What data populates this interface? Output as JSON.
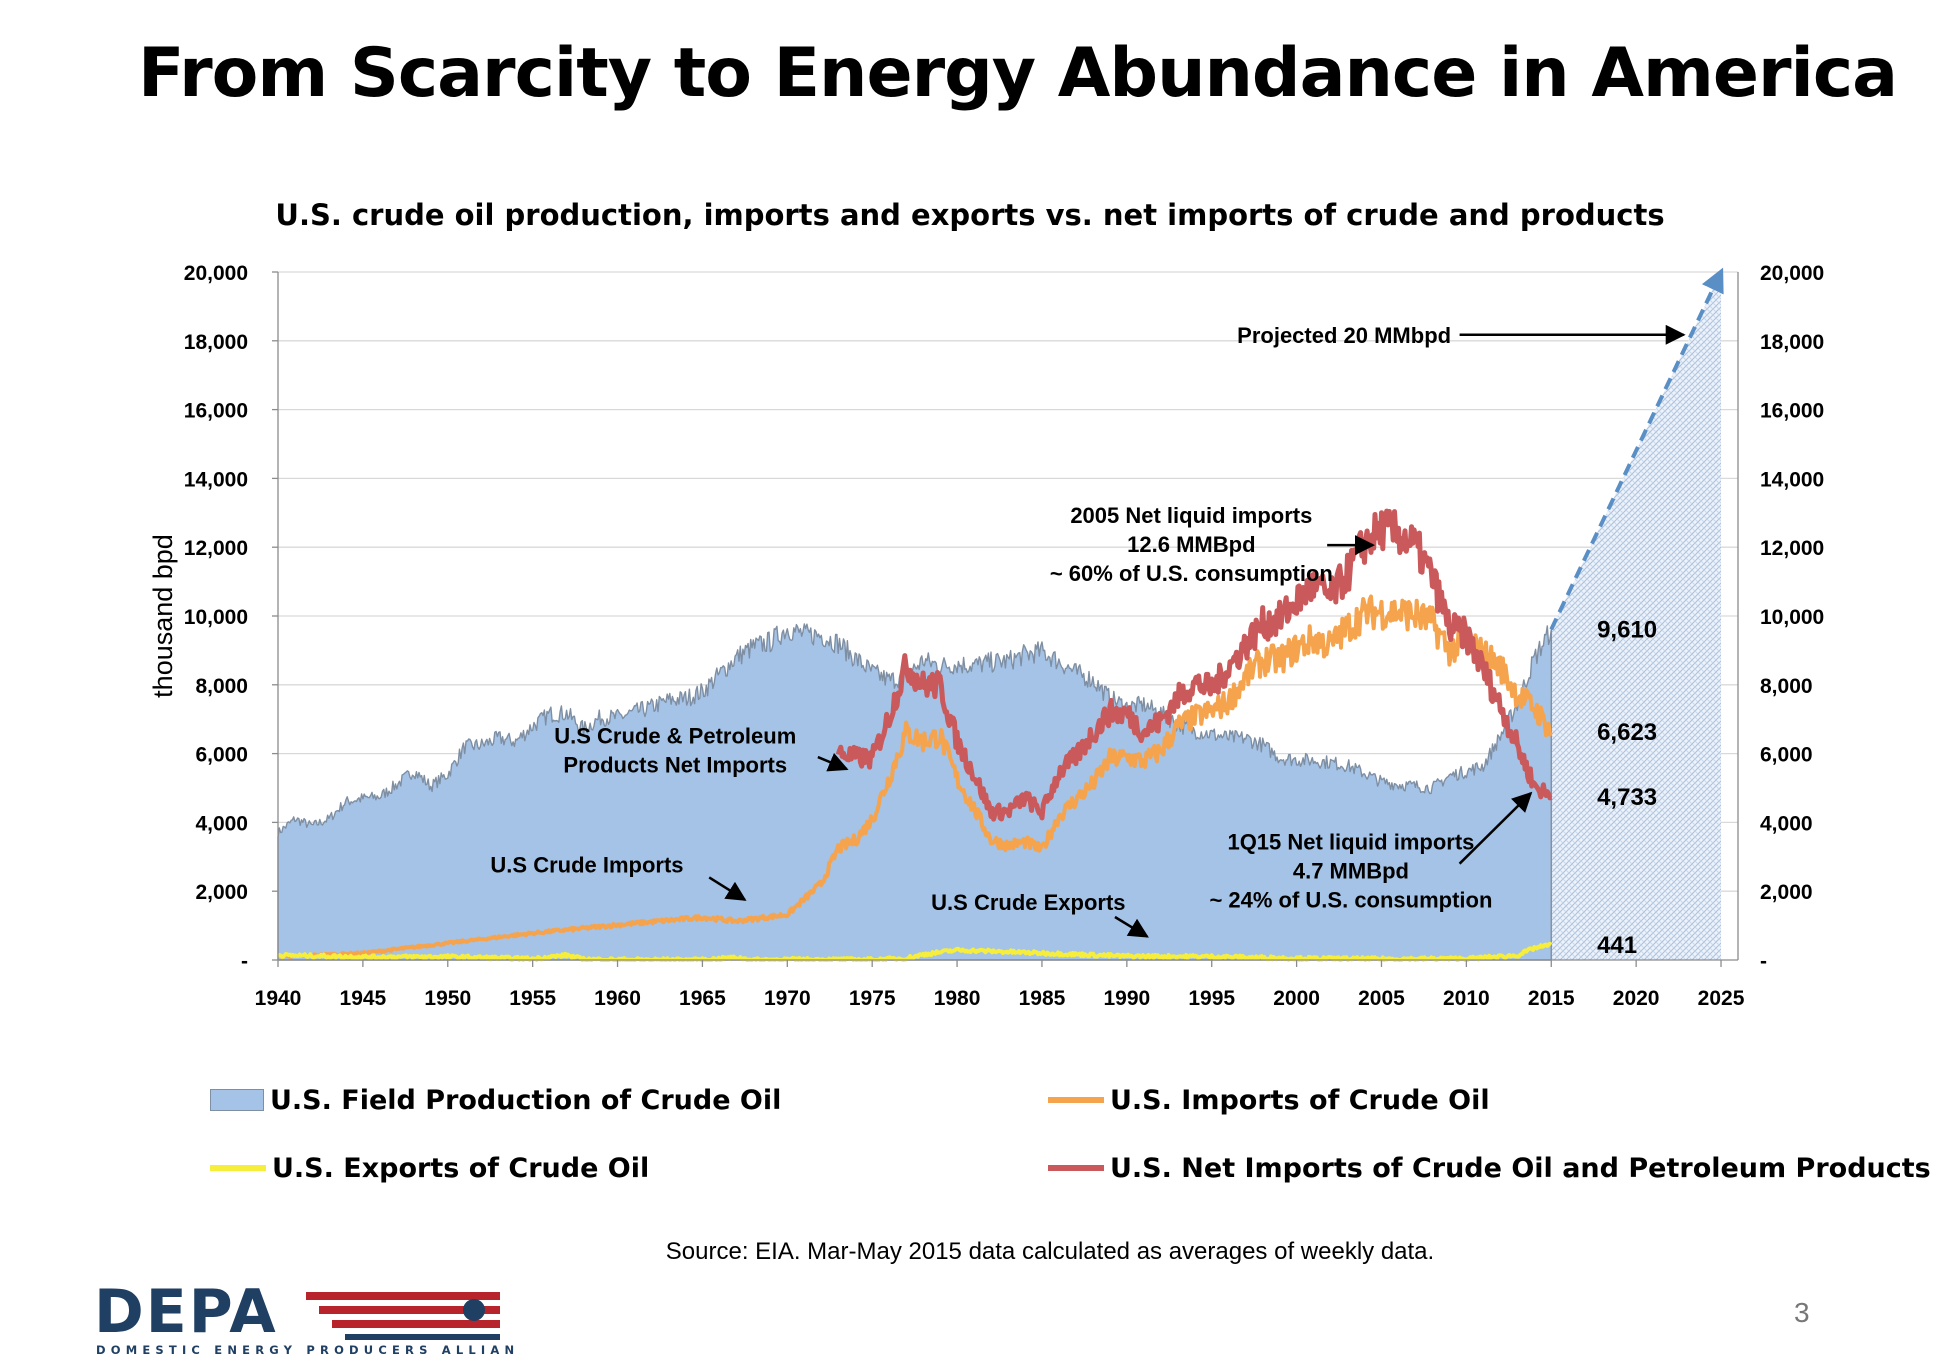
{
  "slide": {
    "title": "From Scarcity to Energy Abundance in America",
    "page_number": "3",
    "source": "Source: EIA. Mar-May 2015 data calculated as averages of weekly data.",
    "logo_text": "DEPA",
    "logo_tagline": "DOMESTIC ENERGY PRODUCERS ALLIANCE"
  },
  "colors": {
    "production": "#a4c3e6",
    "production_edge": "#7f8fa3",
    "imports": "#f5a34c",
    "exports": "#f6ee3a",
    "net_imports": "#c9595a",
    "projection": "#5a8fc6",
    "logo_blue": "#1f3f63",
    "logo_red": "#b8242c"
  },
  "chart_data": {
    "type": "area",
    "title": "U.S. crude oil production, imports and exports vs. net imports of crude and products",
    "ylabel": "thousand bpd",
    "xlim": [
      1940,
      2026
    ],
    "ylim": [
      0,
      20000
    ],
    "x_ticks": [
      1940,
      1945,
      1950,
      1955,
      1960,
      1965,
      1970,
      1975,
      1980,
      1985,
      1990,
      1995,
      2000,
      2005,
      2010,
      2015,
      2020,
      2025
    ],
    "y_ticks": [
      0,
      2000,
      4000,
      6000,
      8000,
      10000,
      12000,
      14000,
      16000,
      18000,
      20000
    ],
    "y_tick_labels": [
      "-",
      "2,000",
      "4,000",
      "6,000",
      "8,000",
      "10,000",
      "12,000",
      "14,000",
      "16,000",
      "18,000",
      "20,000"
    ],
    "series": [
      {
        "name": "U.S. Field Production of Crude Oil",
        "kind": "area",
        "points": [
          [
            1940,
            3700
          ],
          [
            1941,
            4100
          ],
          [
            1942,
            3900
          ],
          [
            1943,
            4100
          ],
          [
            1944,
            4600
          ],
          [
            1945,
            4700
          ],
          [
            1946,
            4750
          ],
          [
            1947,
            5100
          ],
          [
            1948,
            5500
          ],
          [
            1949,
            5050
          ],
          [
            1950,
            5400
          ],
          [
            1951,
            6200
          ],
          [
            1952,
            6250
          ],
          [
            1953,
            6450
          ],
          [
            1954,
            6350
          ],
          [
            1955,
            6800
          ],
          [
            1956,
            7150
          ],
          [
            1957,
            7170
          ],
          [
            1958,
            6700
          ],
          [
            1959,
            7050
          ],
          [
            1960,
            7050
          ],
          [
            1961,
            7200
          ],
          [
            1962,
            7350
          ],
          [
            1963,
            7550
          ],
          [
            1964,
            7600
          ],
          [
            1965,
            7800
          ],
          [
            1966,
            8300
          ],
          [
            1967,
            8800
          ],
          [
            1968,
            9100
          ],
          [
            1969,
            9250
          ],
          [
            1970,
            9640
          ],
          [
            1971,
            9460
          ],
          [
            1972,
            9440
          ],
          [
            1973,
            9210
          ],
          [
            1974,
            8770
          ],
          [
            1975,
            8370
          ],
          [
            1976,
            8130
          ],
          [
            1977,
            8240
          ],
          [
            1978,
            8710
          ],
          [
            1979,
            8550
          ],
          [
            1980,
            8600
          ],
          [
            1981,
            8570
          ],
          [
            1982,
            8650
          ],
          [
            1983,
            8690
          ],
          [
            1984,
            8880
          ],
          [
            1985,
            8970
          ],
          [
            1986,
            8680
          ],
          [
            1987,
            8350
          ],
          [
            1988,
            8140
          ],
          [
            1989,
            7610
          ],
          [
            1990,
            7360
          ],
          [
            1991,
            7420
          ],
          [
            1992,
            7170
          ],
          [
            1993,
            6850
          ],
          [
            1994,
            6660
          ],
          [
            1995,
            6560
          ],
          [
            1996,
            6460
          ],
          [
            1997,
            6450
          ],
          [
            1998,
            6250
          ],
          [
            1999,
            5880
          ],
          [
            2000,
            5820
          ],
          [
            2001,
            5800
          ],
          [
            2002,
            5740
          ],
          [
            2003,
            5650
          ],
          [
            2004,
            5430
          ],
          [
            2005,
            5180
          ],
          [
            2006,
            5100
          ],
          [
            2007,
            5060
          ],
          [
            2008,
            5000
          ],
          [
            2009,
            5350
          ],
          [
            2010,
            5480
          ],
          [
            2011,
            5650
          ],
          [
            2012,
            6500
          ],
          [
            2013,
            7450
          ],
          [
            2014,
            8760
          ],
          [
            2015,
            9610
          ]
        ]
      },
      {
        "name": "U.S. Imports of Crude Oil",
        "kind": "line",
        "points": [
          [
            1940,
            100
          ],
          [
            1945,
            200
          ],
          [
            1950,
            490
          ],
          [
            1955,
            780
          ],
          [
            1960,
            1020
          ],
          [
            1965,
            1240
          ],
          [
            1967,
            1130
          ],
          [
            1970,
            1320
          ],
          [
            1972,
            2220
          ],
          [
            1973,
            3240
          ],
          [
            1974,
            3480
          ],
          [
            1975,
            4100
          ],
          [
            1976,
            5290
          ],
          [
            1977,
            6620
          ],
          [
            1978,
            6360
          ],
          [
            1979,
            6520
          ],
          [
            1980,
            5260
          ],
          [
            1981,
            4400
          ],
          [
            1982,
            3490
          ],
          [
            1983,
            3330
          ],
          [
            1984,
            3430
          ],
          [
            1985,
            3200
          ],
          [
            1986,
            4180
          ],
          [
            1987,
            4670
          ],
          [
            1988,
            5110
          ],
          [
            1989,
            5840
          ],
          [
            1990,
            5890
          ],
          [
            1991,
            5780
          ],
          [
            1992,
            6080
          ],
          [
            1993,
            6790
          ],
          [
            1994,
            7060
          ],
          [
            1995,
            7230
          ],
          [
            1996,
            7510
          ],
          [
            1997,
            8230
          ],
          [
            1998,
            8710
          ],
          [
            1999,
            8730
          ],
          [
            2000,
            9070
          ],
          [
            2001,
            9330
          ],
          [
            2002,
            9140
          ],
          [
            2003,
            9660
          ],
          [
            2004,
            10090
          ],
          [
            2005,
            10130
          ],
          [
            2006,
            10120
          ],
          [
            2007,
            10030
          ],
          [
            2008,
            9780
          ],
          [
            2009,
            9010
          ],
          [
            2010,
            9210
          ],
          [
            2011,
            8930
          ],
          [
            2012,
            8530
          ],
          [
            2013,
            7720
          ],
          [
            2014,
            7340
          ],
          [
            2015,
            6623
          ]
        ]
      },
      {
        "name": "U.S. Exports of Crude Oil",
        "kind": "line",
        "points": [
          [
            1940,
            140
          ],
          [
            1945,
            90
          ],
          [
            1950,
            95
          ],
          [
            1955,
            35
          ],
          [
            1957,
            140
          ],
          [
            1958,
            20
          ],
          [
            1960,
            10
          ],
          [
            1965,
            5
          ],
          [
            1967,
            70
          ],
          [
            1968,
            5
          ],
          [
            1970,
            15
          ],
          [
            1975,
            10
          ],
          [
            1977,
            50
          ],
          [
            1978,
            160
          ],
          [
            1980,
            290
          ],
          [
            1985,
            200
          ],
          [
            1990,
            110
          ],
          [
            1995,
            100
          ],
          [
            2000,
            50
          ],
          [
            2005,
            30
          ],
          [
            2010,
            40
          ],
          [
            2013,
            130
          ],
          [
            2014,
            350
          ],
          [
            2015,
            441
          ]
        ]
      },
      {
        "name": "U.S. Net Imports of Crude Oil and Petroleum Products",
        "kind": "line",
        "points": [
          [
            1973,
            6020
          ],
          [
            1974,
            5890
          ],
          [
            1975,
            5850
          ],
          [
            1976,
            7090
          ],
          [
            1977,
            8560
          ],
          [
            1978,
            8000
          ],
          [
            1979,
            7990
          ],
          [
            1980,
            6360
          ],
          [
            1981,
            5400
          ],
          [
            1982,
            4300
          ],
          [
            1983,
            4310
          ],
          [
            1984,
            4720
          ],
          [
            1985,
            4290
          ],
          [
            1986,
            5440
          ],
          [
            1987,
            5910
          ],
          [
            1988,
            6590
          ],
          [
            1989,
            7200
          ],
          [
            1990,
            7160
          ],
          [
            1991,
            6630
          ],
          [
            1992,
            6940
          ],
          [
            1993,
            7620
          ],
          [
            1994,
            8050
          ],
          [
            1995,
            7890
          ],
          [
            1996,
            8500
          ],
          [
            1997,
            9160
          ],
          [
            1998,
            9760
          ],
          [
            1999,
            9910
          ],
          [
            2000,
            10420
          ],
          [
            2001,
            10900
          ],
          [
            2002,
            10550
          ],
          [
            2003,
            11240
          ],
          [
            2004,
            12100
          ],
          [
            2005,
            12550
          ],
          [
            2006,
            12390
          ],
          [
            2007,
            12040
          ],
          [
            2008,
            11110
          ],
          [
            2009,
            9670
          ],
          [
            2010,
            9440
          ],
          [
            2011,
            8450
          ],
          [
            2012,
            7390
          ],
          [
            2013,
            6240
          ],
          [
            2014,
            5070
          ],
          [
            2015,
            4733
          ]
        ]
      },
      {
        "name": "Projected",
        "kind": "projection",
        "points": [
          [
            2015,
            9610
          ],
          [
            2025,
            20000
          ]
        ]
      }
    ],
    "data_labels": [
      {
        "text": "9,610",
        "value": 9610
      },
      {
        "text": "6,623",
        "value": 6623
      },
      {
        "text": "4,733",
        "value": 4733
      },
      {
        "text": "441",
        "value": 441
      }
    ],
    "annotations": [
      {
        "lines": [
          "Projected 20 MMbpd"
        ]
      },
      {
        "lines": [
          "2005 Net liquid imports",
          "12.6 MMBpd",
          "~ 60% of U.S. consumption"
        ]
      },
      {
        "lines": [
          "U.S Crude & Petroleum",
          "Products Net Imports"
        ]
      },
      {
        "lines": [
          "U.S Crude Imports"
        ]
      },
      {
        "lines": [
          "U.S Crude Exports"
        ]
      },
      {
        "lines": [
          "1Q15 Net liquid imports",
          "4.7 MMBpd",
          "~ 24% of U.S. consumption"
        ]
      }
    ],
    "legend": [
      {
        "label": "U.S. Field Production of Crude Oil",
        "color": "#a4c3e6",
        "style": "box"
      },
      {
        "label": "U.S. Imports of Crude Oil",
        "color": "#f5a34c",
        "style": "line"
      },
      {
        "label": "U.S. Exports of Crude Oil",
        "color": "#f6ee3a",
        "style": "line"
      },
      {
        "label": "U.S. Net Imports of Crude Oil and Petroleum Products",
        "color": "#c9595a",
        "style": "line"
      }
    ],
    "legend_position": "bottom",
    "grid": true
  }
}
